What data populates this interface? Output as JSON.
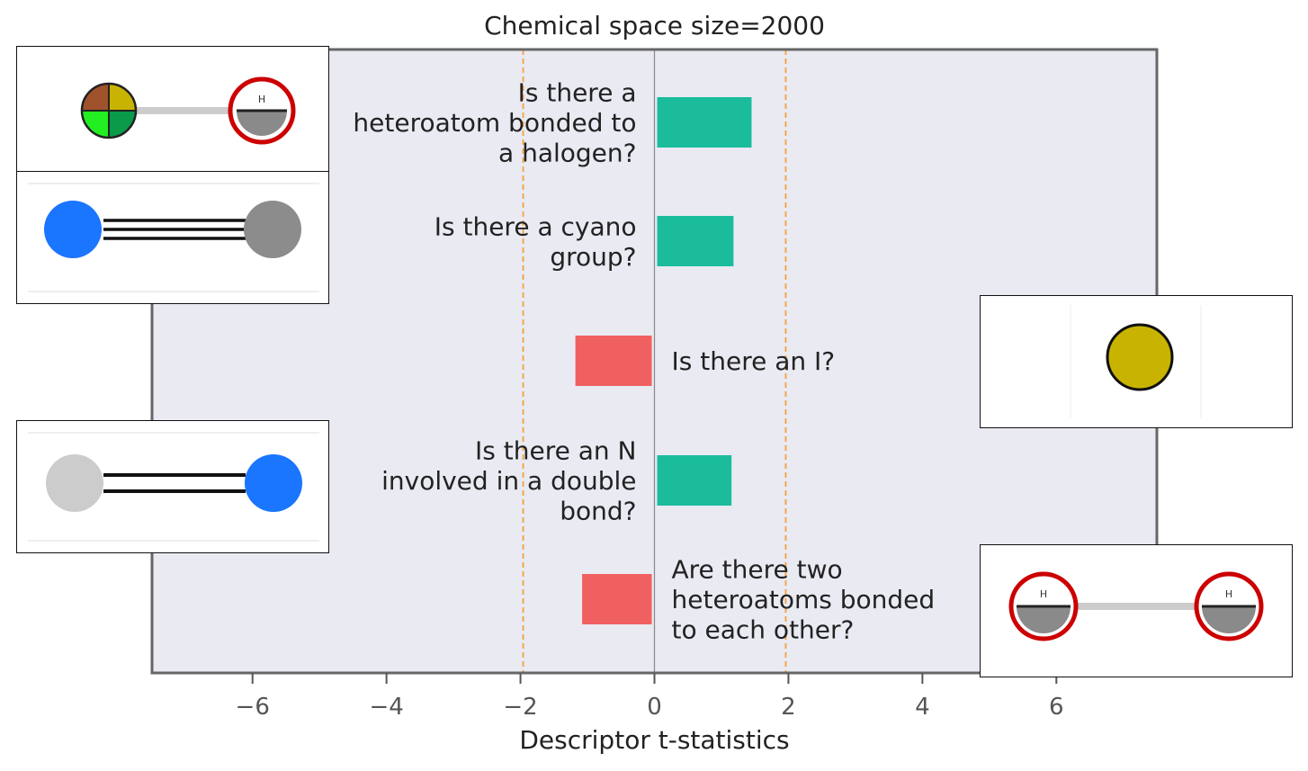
{
  "chart_data": {
    "type": "bar",
    "orientation": "horizontal",
    "title": "Chemical space size=2000",
    "xlabel": "Descriptor t-statistics",
    "xlim": [
      -7.5,
      7.5
    ],
    "xticks": [
      -6,
      -4,
      -2,
      0,
      2,
      4,
      6
    ],
    "xtick_labels": [
      "−6",
      "−4",
      "−2",
      "0",
      "2",
      "4",
      "6"
    ],
    "threshold_lines": [
      -1.96,
      1.96
    ],
    "grid": false,
    "categories": [
      [
        "Is there a",
        "heteroatom bonded to",
        "a halogen?"
      ],
      [
        "Is there a cyano",
        "group?"
      ],
      [
        "Is there an I?"
      ],
      [
        "Is there an N",
        "involved in a double",
        "bond?"
      ],
      [
        "Are there two",
        "heteroatoms bonded",
        "to each other?"
      ]
    ],
    "values": [
      1.45,
      1.18,
      -1.18,
      1.15,
      -1.08
    ],
    "colors": {
      "positive": "#1abc9c",
      "negative": "#f06060",
      "threshold": "#f5a040",
      "zero_line": "#888888",
      "plot_bg": "#e9eaf2",
      "axes_edge": "#666666"
    },
    "thumbnails": [
      {
        "bar": 0,
        "side": "left",
        "depicts": "atom-with-hydrogen-bond-icon",
        "atom_label": "H"
      },
      {
        "bar": 1,
        "side": "left",
        "depicts": "triple-bond-icon"
      },
      {
        "bar": 2,
        "side": "right",
        "depicts": "iodine-atom-icon"
      },
      {
        "bar": 3,
        "side": "left",
        "depicts": "double-bond-icon"
      },
      {
        "bar": 4,
        "side": "right",
        "depicts": "hydrogen-hydrogen-bond-icon",
        "atom_labels": [
          "H",
          "H"
        ]
      }
    ]
  }
}
